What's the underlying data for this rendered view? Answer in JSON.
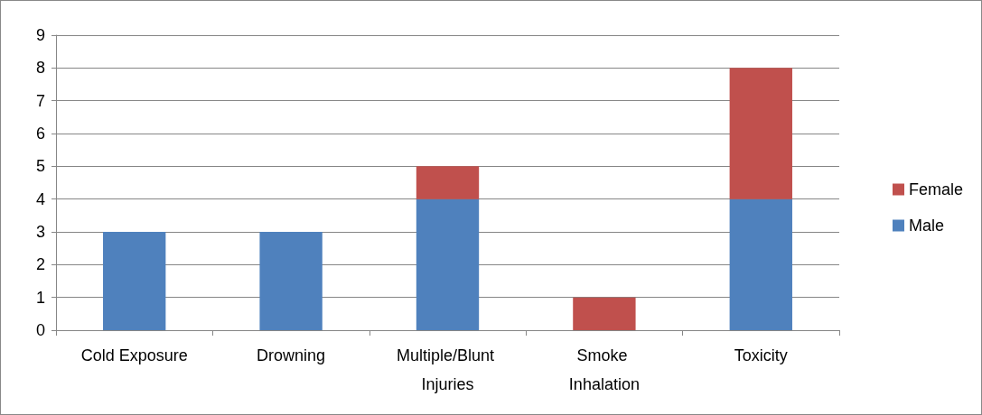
{
  "chart_data": {
    "type": "bar",
    "stacked": true,
    "categories": [
      "Cold Exposure",
      "Drowning",
      "Multiple/Blunt Injuries",
      "Smoke Inhalation",
      "Toxicity"
    ],
    "series": [
      {
        "name": "Male",
        "color": "#4f81bd",
        "values": [
          3,
          3,
          4,
          0,
          4
        ]
      },
      {
        "name": "Female",
        "color": "#c0504d",
        "values": [
          0,
          0,
          1,
          1,
          4
        ]
      }
    ],
    "ylim": [
      0,
      9
    ],
    "yticks": [
      0,
      1,
      2,
      3,
      4,
      5,
      6,
      7,
      8,
      9
    ],
    "grid": "y",
    "legend": "right"
  }
}
